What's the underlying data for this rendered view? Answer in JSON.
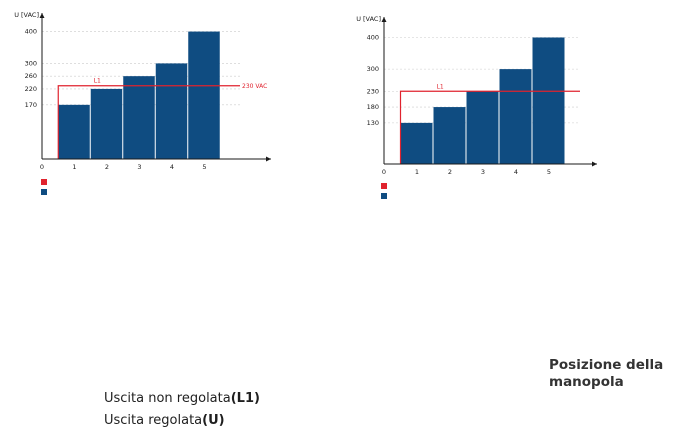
{
  "colors": {
    "bar": "#0f4c81",
    "line": "#e0232e",
    "axis": "#1a1a1a",
    "grid": "#cccccc"
  },
  "chart_data": [
    {
      "type": "bar",
      "ylabel": "U [VAC]",
      "x_ticks": [
        "0",
        "1",
        "2",
        "3",
        "4",
        "5"
      ],
      "categories": [
        "1",
        "2",
        "3",
        "4",
        "5"
      ],
      "values": [
        170,
        220,
        260,
        300,
        400
      ],
      "y_ticks": [
        "170",
        "220",
        "260",
        "300",
        "400"
      ],
      "ylim": [
        0,
        430
      ],
      "threshold": {
        "value": 230,
        "label": "L1",
        "right_label": "230 VAC"
      },
      "grid": true,
      "legend": "bottom-left"
    },
    {
      "type": "bar",
      "ylabel": "U [VAC]",
      "x_ticks": [
        "0",
        "1",
        "2",
        "3",
        "4",
        "5"
      ],
      "categories": [
        "1",
        "2",
        "3",
        "4",
        "5"
      ],
      "values": [
        130,
        180,
        230,
        300,
        400
      ],
      "y_ticks": [
        "130",
        "180",
        "230",
        "300",
        "400"
      ],
      "ylim": [
        0,
        430
      ],
      "threshold": {
        "value": 230,
        "label": "L1",
        "right_label": ""
      },
      "grid": true,
      "legend": "bottom-left"
    }
  ],
  "texts": {
    "posizione": "Posizione della manopola",
    "legend_unreg": "Uscita non regolata",
    "legend_unreg_bold": "(L1)",
    "legend_reg": "Uscita regolata",
    "legend_reg_bold": "(U)"
  }
}
